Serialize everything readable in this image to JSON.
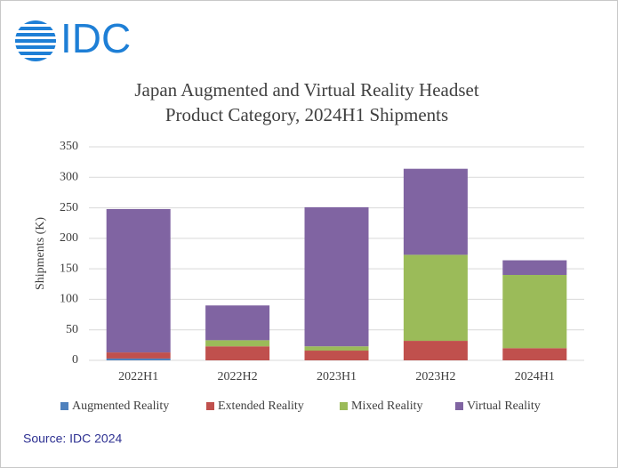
{
  "logo": "IDC",
  "source": "Source: IDC 2024",
  "chart_data": {
    "type": "stacked_bar",
    "title": [
      "Japan Augmented and Virtual Reality Headset",
      "Product Category, 2024H1 Shipments"
    ],
    "y_label": "Shipments (K)",
    "categories": [
      "2022H1",
      "2022H2",
      "2023H1",
      "2023H2",
      "2024H1"
    ],
    "series": [
      {
        "name": "Augmented Reality",
        "color": "#4f81bd",
        "values": [
          3,
          0,
          0,
          0,
          0
        ]
      },
      {
        "name": "Extended Reality",
        "color": "#c0504d",
        "values": [
          10,
          23,
          16,
          32,
          20
        ]
      },
      {
        "name": "Mixed Reality",
        "color": "#9bbb59",
        "values": [
          0,
          10,
          7,
          141,
          120
        ]
      },
      {
        "name": "Virtual Reality",
        "color": "#8064a2",
        "values": [
          235,
          57,
          228,
          141,
          24
        ]
      }
    ],
    "ylim": [
      0,
      350
    ],
    "yticks": [
      0,
      50,
      100,
      150,
      200,
      250,
      300,
      350
    ],
    "grid": true
  }
}
